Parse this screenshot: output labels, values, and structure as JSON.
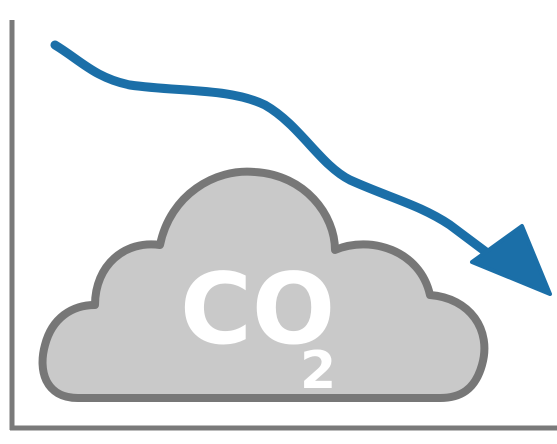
{
  "icon": {
    "text": "CO",
    "subscript": "2"
  }
}
